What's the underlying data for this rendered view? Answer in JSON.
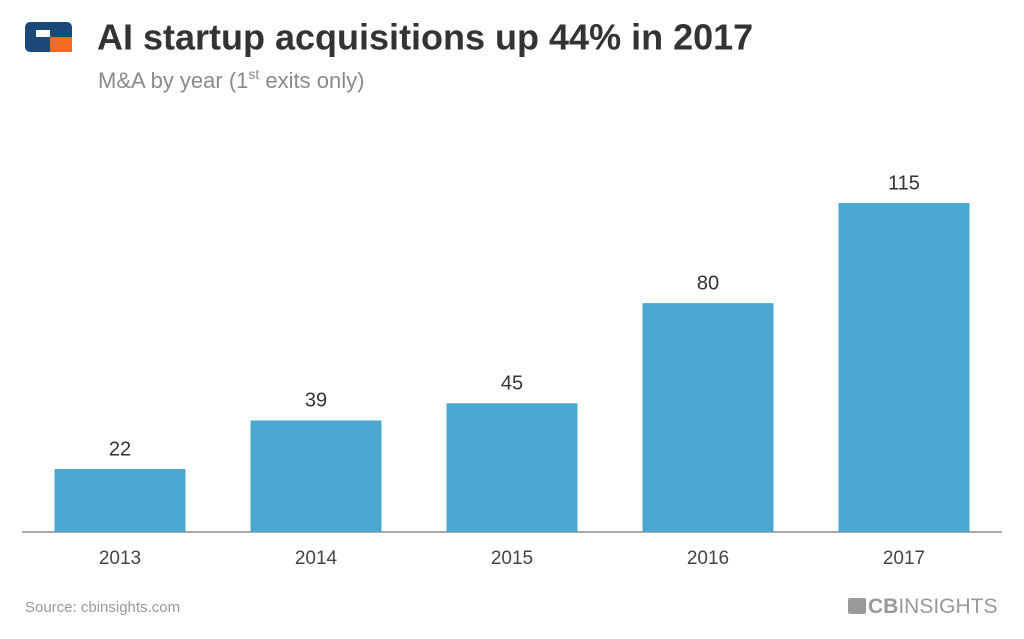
{
  "chart_data": {
    "type": "bar",
    "title": "AI startup acquisitions up 44% in 2017",
    "subtitle": [
      "M&A by year (1",
      "st",
      " exits only)"
    ],
    "categories": [
      "2013",
      "2014",
      "2015",
      "2016",
      "2017"
    ],
    "values": [
      22,
      39,
      45,
      80,
      115
    ],
    "color": "#4ba8d0",
    "source": "Source: cbinsights.com",
    "brand": [
      "CB",
      "INSIGHTS"
    ]
  }
}
